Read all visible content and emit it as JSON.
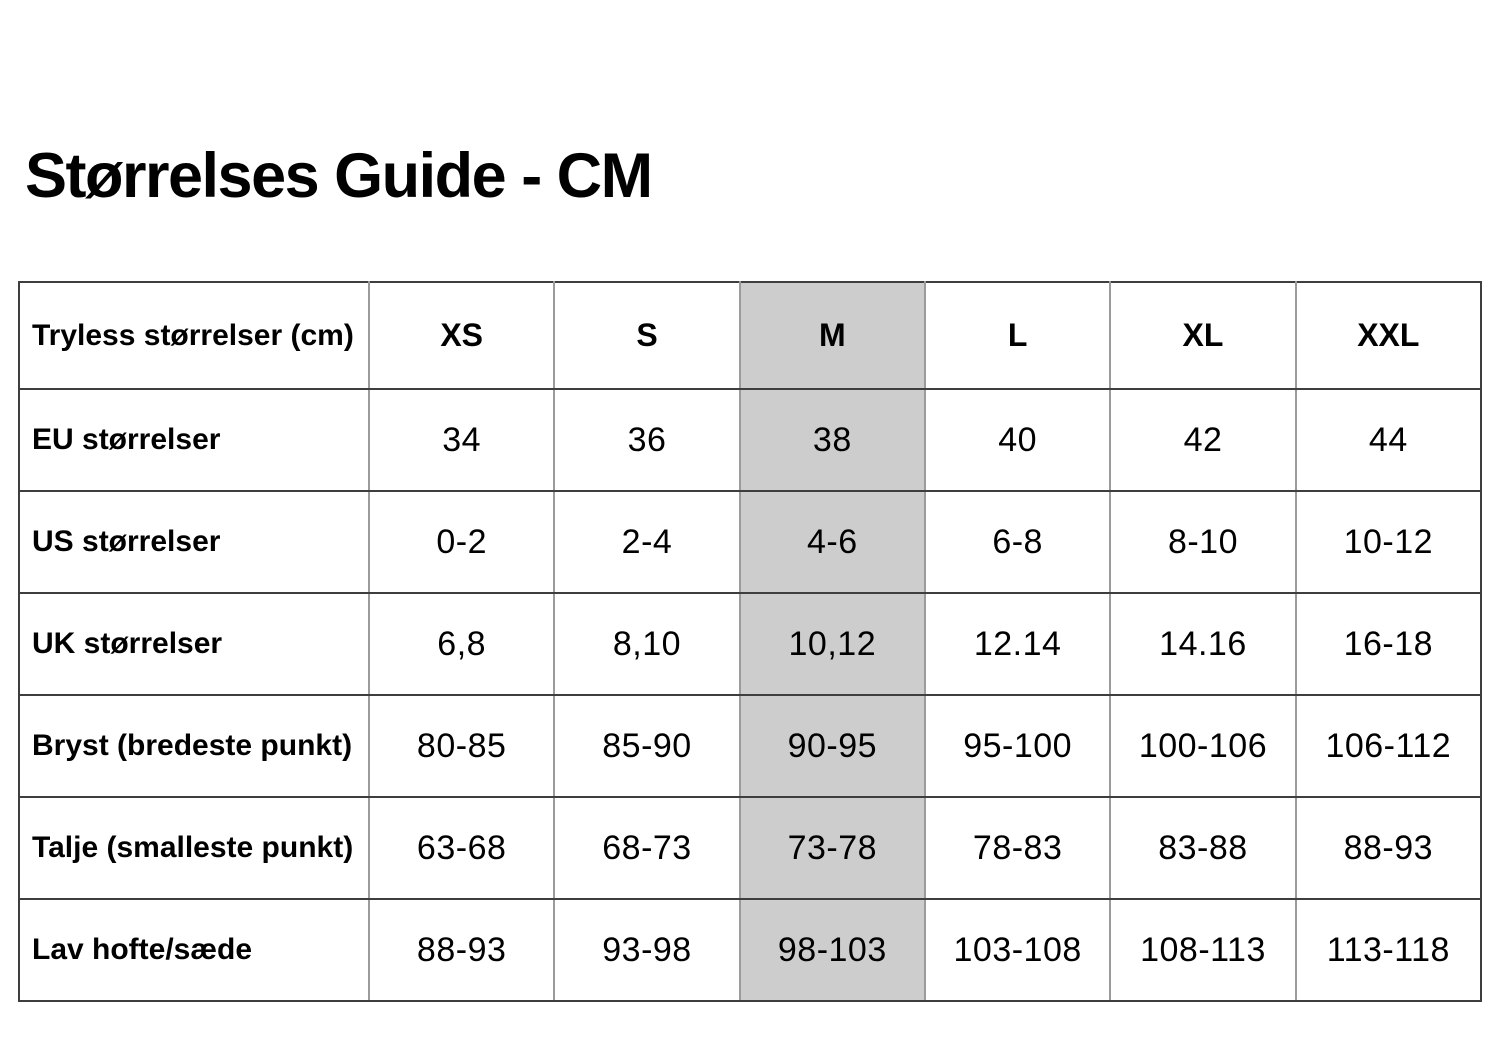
{
  "title": "Størrelses Guide - CM",
  "chart_data": {
    "type": "table",
    "title": "Størrelses Guide - CM",
    "corner_label": "Tryless størrelser (cm)",
    "columns": [
      "XS",
      "S",
      "M",
      "L",
      "XL",
      "XXL"
    ],
    "highlighted_column": "M",
    "rows": [
      {
        "label": "EU størrelser",
        "values": [
          "34",
          "36",
          "38",
          "40",
          "42",
          "44"
        ]
      },
      {
        "label": "US størrelser",
        "values": [
          "0-2",
          "2-4",
          "4-6",
          "6-8",
          "8-10",
          "10-12"
        ]
      },
      {
        "label": "UK størrelser",
        "values": [
          "6,8",
          "8,10",
          "10,12",
          "12.14",
          "14.16",
          "16-18"
        ]
      },
      {
        "label": "Bryst (bredeste punkt)",
        "values": [
          "80-85",
          "85-90",
          "90-95",
          "95-100",
          "100-106",
          "106-112"
        ]
      },
      {
        "label": "Talje (smalleste punkt)",
        "values": [
          "63-68",
          "68-73",
          "73-78",
          "78-83",
          "83-88",
          "88-93"
        ]
      },
      {
        "label": "Lav hofte/sæde",
        "values": [
          "88-93",
          "93-98",
          "98-103",
          "103-108",
          "108-113",
          "113-118"
        ]
      }
    ],
    "colors": {
      "highlight": "#cdcdcd",
      "border_dark": "#3e3e3e",
      "border_light": "#9b9b9b",
      "text": "#000000",
      "background": "#ffffff"
    },
    "layout_hints": {
      "grid": "on",
      "header_row": "bold",
      "label_column": "bold-left-aligned",
      "value_cells": "regular-centered"
    }
  }
}
